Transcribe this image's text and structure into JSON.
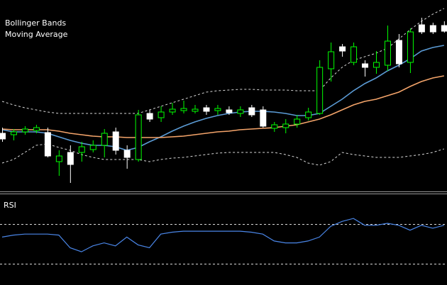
{
  "chart_data": [
    {
      "type": "candlestick",
      "labels": [
        "Bollinger Bands",
        "Moving Average"
      ],
      "categories": [
        null,
        null,
        null,
        null,
        null,
        null,
        null,
        null,
        null,
        null,
        null,
        null,
        null,
        null,
        null,
        null,
        null,
        null,
        null,
        null,
        null,
        null,
        null,
        null,
        null,
        null,
        null,
        null,
        null,
        null,
        null,
        null,
        null,
        null,
        null,
        null,
        null,
        null,
        null,
        null
      ],
      "open": [
        82,
        80,
        84,
        86,
        83,
        42,
        55,
        55,
        59,
        65,
        84,
        58,
        45,
        110,
        104,
        112,
        114,
        113,
        118,
        114,
        115,
        110,
        118,
        115,
        89,
        90,
        95,
        104,
        110,
        173,
        204,
        182,
        180,
        175,
        178,
        213,
        182,
        235,
        234,
        234
      ],
      "high": [
        90,
        88,
        92,
        94,
        90,
        58,
        65,
        70,
        72,
        88,
        90,
        65,
        115,
        115,
        120,
        125,
        128,
        122,
        122,
        122,
        120,
        120,
        122,
        120,
        98,
        102,
        108,
        118,
        185,
        210,
        208,
        210,
        185,
        198,
        234,
        222,
        230,
        245,
        238,
        240
      ],
      "low": [
        70,
        72,
        80,
        82,
        48,
        22,
        12,
        42,
        55,
        48,
        52,
        32,
        42,
        98,
        98,
        108,
        110,
        110,
        108,
        108,
        108,
        105,
        105,
        90,
        84,
        82,
        90,
        100,
        108,
        155,
        190,
        178,
        162,
        166,
        170,
        175,
        167,
        222,
        222,
        224
      ],
      "close": [
        74,
        84,
        88,
        90,
        50,
        50,
        38,
        63,
        65,
        82,
        58,
        48,
        108,
        102,
        112,
        116,
        117,
        116,
        113,
        117,
        111,
        115,
        108,
        92,
        94,
        95,
        102,
        112,
        175,
        197,
        198,
        204,
        175,
        182,
        212,
        180,
        225,
        225,
        225,
        226
      ],
      "up_color": "#00ff00",
      "down_color": "#ffffff",
      "ylim": [
        0,
        270
      ],
      "lines": [
        {
          "color": "#5b9bd5",
          "dashed": false,
          "values": [
            87,
            84,
            84,
            84,
            82,
            77,
            72,
            68,
            65,
            65,
            63,
            58,
            62,
            70,
            77,
            85,
            92,
            98,
            103,
            107,
            110,
            112,
            113,
            113,
            112,
            110,
            107,
            107,
            110,
            120,
            130,
            142,
            152,
            160,
            170,
            178,
            187,
            198,
            203,
            206
          ]
        },
        {
          "color": "#f4a46a",
          "dashed": false,
          "values": [
            88,
            87,
            87,
            87,
            87,
            85,
            82,
            80,
            78,
            77,
            77,
            76,
            76,
            76,
            76,
            77,
            78,
            80,
            82,
            84,
            85,
            87,
            88,
            89,
            90,
            92,
            94,
            98,
            102,
            108,
            115,
            122,
            127,
            130,
            135,
            140,
            148,
            155,
            160,
            163
          ]
        },
        {
          "color": "#d8d8d8",
          "dashed": true,
          "values": [
            127,
            122,
            118,
            115,
            112,
            110,
            110,
            110,
            110,
            110,
            110,
            110,
            110,
            115,
            120,
            125,
            130,
            135,
            140,
            142,
            143,
            144,
            144,
            143,
            143,
            143,
            142,
            142,
            142,
            160,
            175,
            185,
            190,
            195,
            202,
            215,
            228,
            240,
            250,
            258
          ]
        },
        {
          "color": "#d8d8d8",
          "dashed": true,
          "values": [
            40,
            45,
            55,
            65,
            67,
            62,
            58,
            52,
            48,
            45,
            45,
            45,
            45,
            42,
            45,
            47,
            48,
            50,
            52,
            54,
            55,
            55,
            55,
            55,
            55,
            52,
            48,
            40,
            37,
            42,
            55,
            52,
            50,
            48,
            48,
            48,
            50,
            52,
            55,
            60
          ]
        }
      ]
    },
    {
      "type": "line",
      "title": "RSI",
      "values": [
        57,
        59,
        60,
        60,
        60,
        59,
        46,
        42,
        48,
        51,
        48,
        57,
        49,
        46,
        60,
        62,
        63,
        63,
        63,
        63,
        63,
        63,
        62,
        60,
        53,
        51,
        51,
        53,
        57,
        68,
        73,
        76,
        69,
        69,
        71,
        69,
        64,
        69,
        66,
        69
      ],
      "color": "#4a86e8",
      "levels": [
        70,
        30
      ],
      "level_color": "#d8d8d8",
      "ylim": [
        8,
        100
      ]
    }
  ]
}
